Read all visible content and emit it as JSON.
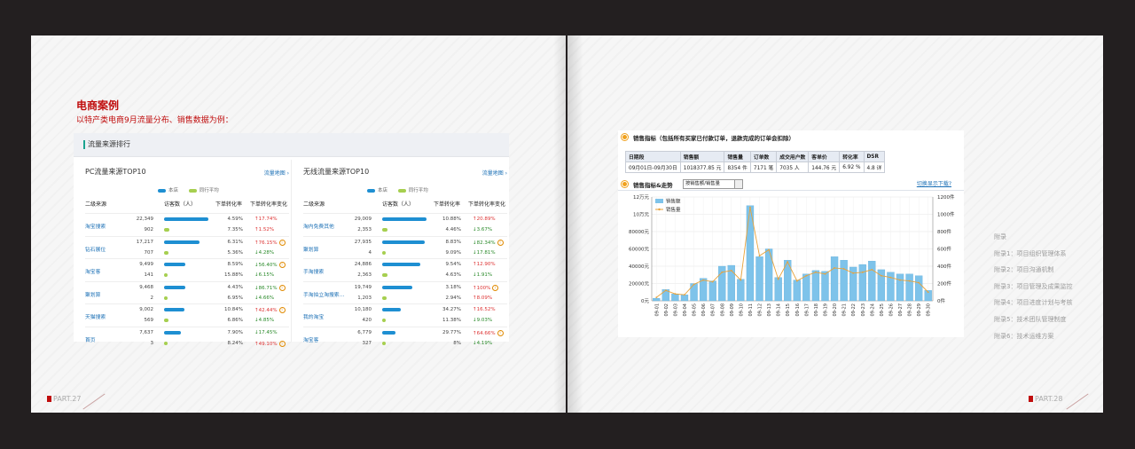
{
  "left_page": {
    "title": "电商案例",
    "subtitle": "以特产类电商9月流量分布、销售数据为例：",
    "panel_title": "流量来源排行",
    "page_label": "PART.27",
    "pc": {
      "title": "PC流量来源TOP10",
      "link": "流量地图 ›",
      "legend": [
        "本店",
        "同行平均"
      ],
      "headers": [
        "二级来源",
        "访客数（人）",
        "下单转化率",
        "下单转化率变化"
      ],
      "rows": [
        {
          "source": "淘宝搜索",
          "store": {
            "visitors": "22,349",
            "bar": 1.0,
            "rate": "4.59%",
            "change": "17.74%",
            "dir": "up",
            "warn": false
          },
          "peer": {
            "visitors": "902",
            "bar": 0.12,
            "rate": "7.35%",
            "change": "1.52%",
            "dir": "up",
            "warn": false
          }
        },
        {
          "source": "钻石展位",
          "store": {
            "visitors": "17,217",
            "bar": 0.8,
            "rate": "6.31%",
            "change": "76.15%",
            "dir": "up",
            "warn": true
          },
          "peer": {
            "visitors": "707",
            "bar": 0.1,
            "rate": "5.36%",
            "change": "4.28%",
            "dir": "dn",
            "warn": false
          }
        },
        {
          "source": "淘宝客",
          "store": {
            "visitors": "9,499",
            "bar": 0.48,
            "rate": "8.59%",
            "change": "56.40%",
            "dir": "dn",
            "warn": true
          },
          "peer": {
            "visitors": "141",
            "bar": 0.08,
            "rate": "15.88%",
            "change": "6.15%",
            "dir": "dn",
            "warn": false
          }
        },
        {
          "source": "聚划算",
          "store": {
            "visitors": "9,468",
            "bar": 0.47,
            "rate": "4.43%",
            "change": "86.71%",
            "dir": "dn",
            "warn": true
          },
          "peer": {
            "visitors": "2",
            "bar": 0.06,
            "rate": "6.95%",
            "change": "4.66%",
            "dir": "dn",
            "warn": false
          }
        },
        {
          "source": "天猫搜索",
          "store": {
            "visitors": "9,002",
            "bar": 0.45,
            "rate": "10.84%",
            "change": "42.44%",
            "dir": "up",
            "warn": true
          },
          "peer": {
            "visitors": "569",
            "bar": 0.1,
            "rate": "6.86%",
            "change": "4.85%",
            "dir": "dn",
            "warn": false
          }
        },
        {
          "source": "首页",
          "store": {
            "visitors": "7,637",
            "bar": 0.38,
            "rate": "7.90%",
            "change": "17.45%",
            "dir": "dn",
            "warn": false
          },
          "peer": {
            "visitors": "3",
            "bar": 0.06,
            "rate": "8.24%",
            "change": "49.10%",
            "dir": "up",
            "warn": true
          }
        }
      ]
    },
    "wireless": {
      "title": "无线流量来源TOP10",
      "link": "流量地图 ›",
      "legend": [
        "本店",
        "同行平均"
      ],
      "headers": [
        "二级来源",
        "访客数（人）",
        "下单转化率",
        "下单转化率变化"
      ],
      "rows": [
        {
          "source": "淘内免费其他",
          "store": {
            "visitors": "29,009",
            "bar": 1.0,
            "rate": "10.88%",
            "change": "20.89%",
            "dir": "up",
            "warn": false
          },
          "peer": {
            "visitors": "2,353",
            "bar": 0.12,
            "rate": "4.46%",
            "change": "3.67%",
            "dir": "dn",
            "warn": false
          }
        },
        {
          "source": "聚划算",
          "store": {
            "visitors": "27,935",
            "bar": 0.96,
            "rate": "8.83%",
            "change": "82.34%",
            "dir": "dn",
            "warn": true
          },
          "peer": {
            "visitors": "4",
            "bar": 0.06,
            "rate": "9.09%",
            "change": "17.81%",
            "dir": "dn",
            "warn": false
          }
        },
        {
          "source": "手淘搜索",
          "store": {
            "visitors": "24,886",
            "bar": 0.86,
            "rate": "9.54%",
            "change": "12.90%",
            "dir": "up",
            "warn": false
          },
          "peer": {
            "visitors": "2,363",
            "bar": 0.12,
            "rate": "4.63%",
            "change": "1.91%",
            "dir": "dn",
            "warn": false
          }
        },
        {
          "source": "手淘拍立淘搜索…",
          "store": {
            "visitors": "19,749",
            "bar": 0.68,
            "rate": "3.18%",
            "change": "100%",
            "dir": "up",
            "warn": true
          },
          "peer": {
            "visitors": "1,203",
            "bar": 0.1,
            "rate": "2.94%",
            "change": "8.09%",
            "dir": "up",
            "warn": false
          }
        },
        {
          "source": "我的淘宝",
          "store": {
            "visitors": "10,180",
            "bar": 0.42,
            "rate": "34.27%",
            "change": "16.52%",
            "dir": "up",
            "warn": false
          },
          "peer": {
            "visitors": "420",
            "bar": 0.08,
            "rate": "11.38%",
            "change": "9.03%",
            "dir": "dn",
            "warn": false
          }
        },
        {
          "source": "淘宝客",
          "store": {
            "visitors": "6,779",
            "bar": 0.3,
            "rate": "29.77%",
            "change": "64.66%",
            "dir": "up",
            "warn": true
          },
          "peer": {
            "visitors": "327",
            "bar": 0.08,
            "rate": "8%",
            "change": "4.19%",
            "dir": "dn",
            "warn": false
          }
        }
      ]
    }
  },
  "right_page": {
    "page_label": "PART.28",
    "sales_title": "销售指标（包括所有买家已付款订单，退款完成的订单会扣除）",
    "kpi_headers": [
      "日期段",
      "销售额",
      "销售量",
      "订单数",
      "成交用户数",
      "客单价",
      "转化率",
      "DSR"
    ],
    "kpi_values": [
      "09月01日-09月30日",
      "1018377.85  元",
      "8354  件",
      "7171  笔",
      "7035  人",
      "144.76  元",
      "6.92  %",
      "4.8  详"
    ],
    "trend_title": "销售指标&走势",
    "trend_select": "按销售额/销售量",
    "download": "切换显示下载?",
    "appendix": [
      "附录",
      "附录1：项目组织管理体系",
      "附录2：项目沟通机制",
      "附录3：项目管理及成果监控",
      "附录4：项目进度计划与考核",
      "附录5：技术团队管理制度",
      "附录6：技术运维方案"
    ]
  },
  "chart_data": {
    "type": "bar",
    "title": "",
    "categories": [
      "09-01",
      "09-02",
      "09-03",
      "09-04",
      "09-05",
      "09-06",
      "09-07",
      "09-08",
      "09-09",
      "09-10",
      "09-11",
      "09-12",
      "09-13",
      "09-14",
      "09-15",
      "09-16",
      "09-17",
      "09-18",
      "09-19",
      "09-20",
      "09-21",
      "09-22",
      "09-23",
      "09-24",
      "09-25",
      "09-26",
      "09-27",
      "09-28",
      "09-29",
      "09-30"
    ],
    "y_left_ticks": [
      "0元",
      "20000元",
      "40000元",
      "60000元",
      "80000元",
      "10万元",
      "12万元"
    ],
    "y_right_ticks": [
      "0件",
      "200件",
      "400件",
      "600件",
      "800件",
      "1000件",
      "1200件"
    ],
    "ylim_left": [
      0,
      120000
    ],
    "ylim_right": [
      0,
      1200
    ],
    "legend_position": "top-left",
    "series": [
      {
        "name": "销售额",
        "kind": "bar",
        "color": "#7ec3ea",
        "values": [
          3000,
          13000,
          8000,
          7000,
          20000,
          26000,
          23000,
          40000,
          41000,
          25000,
          110000,
          51000,
          60000,
          27000,
          47000,
          24000,
          31000,
          35000,
          34000,
          51000,
          47000,
          39000,
          42000,
          46000,
          36000,
          33000,
          31000,
          31000,
          29000,
          12000
        ]
      },
      {
        "name": "销售量",
        "kind": "line",
        "color": "#e8a23a",
        "values": [
          40,
          120,
          80,
          70,
          190,
          240,
          220,
          330,
          350,
          240,
          1080,
          520,
          590,
          250,
          450,
          230,
          290,
          330,
          310,
          380,
          370,
          320,
          330,
          360,
          290,
          270,
          240,
          230,
          210,
          100
        ]
      }
    ]
  }
}
